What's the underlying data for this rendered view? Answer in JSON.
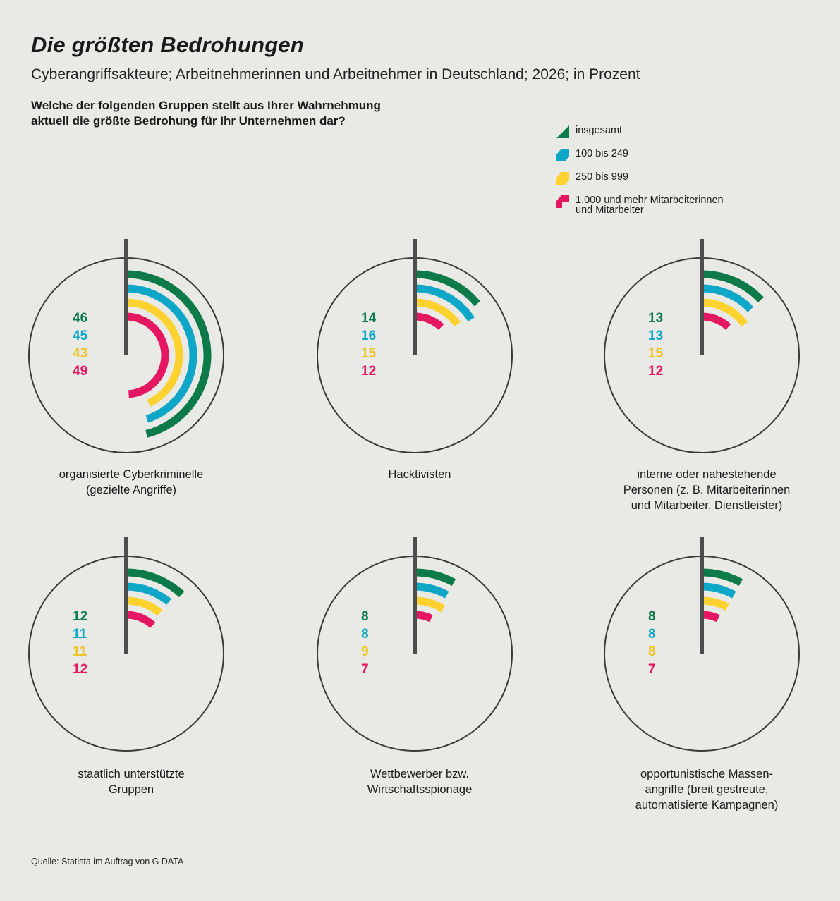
{
  "title": "Die größten Bedrohungen",
  "subtitle": "Cyberangriffsakteure; Arbeitnehmerinnen und Arbeitnehmer in Deutschland; 2026; in Prozent",
  "question_lines": [
    "Welche der folgenden Gruppen stellt aus Ihrer Wahrnehmung",
    "aktuell die größte Bedrohung für Ihr Unternehmen dar?"
  ],
  "legend": [
    {
      "label_lines": [
        "insgesamt"
      ],
      "color": "#0d7a4a"
    },
    {
      "label_lines": [
        "100 bis 249"
      ],
      "color": "#0ea7c8"
    },
    {
      "label_lines": [
        "250 bis 999"
      ],
      "color": "#fdd12e"
    },
    {
      "label_lines": [
        "1.000 und mehr Mitarbeiterinnen",
        "und Mitarbeiter"
      ],
      "color": "#e51763"
    }
  ],
  "chart_data": {
    "type": "radial_bar",
    "unit": "Prozent",
    "series": [
      {
        "name": "insgesamt",
        "color": "#0d7a4a"
      },
      {
        "name": "100 bis 249",
        "color": "#0ea7c8"
      },
      {
        "name": "250 bis 999",
        "color": "#fdd12e"
      },
      {
        "name": "1.000 und mehr Mitarbeiterinnen und Mitarbeiter",
        "color": "#e51763"
      }
    ],
    "categories": [
      {
        "label_lines": [
          "organisierte Cyberkriminelle",
          "(gezielte Angriffe)"
        ],
        "values": [
          46,
          45,
          43,
          49
        ]
      },
      {
        "label_lines": [
          "Hacktivisten"
        ],
        "values": [
          14,
          16,
          15,
          12
        ]
      },
      {
        "label_lines": [
          "interne oder nahestehende",
          "Personen (z. B. Mitarbeiterinnen",
          "und Mitarbeiter, Dienstleister)"
        ],
        "values": [
          13,
          13,
          15,
          12
        ]
      },
      {
        "label_lines": [
          "staatlich unterstützte",
          "Gruppen"
        ],
        "values": [
          12,
          11,
          11,
          12
        ]
      },
      {
        "label_lines": [
          "Wettbewerber bzw.",
          "Wirtschaftsspionage"
        ],
        "values": [
          8,
          8,
          9,
          7
        ]
      },
      {
        "label_lines": [
          "opportunistische Massen-",
          "angriffe (breit gestreute,",
          "automatisierte Kampagnen)"
        ],
        "values": [
          8,
          8,
          8,
          7
        ]
      }
    ],
    "value_max": 100
  },
  "source": "Quelle: Statista im Auftrag von G DATA"
}
